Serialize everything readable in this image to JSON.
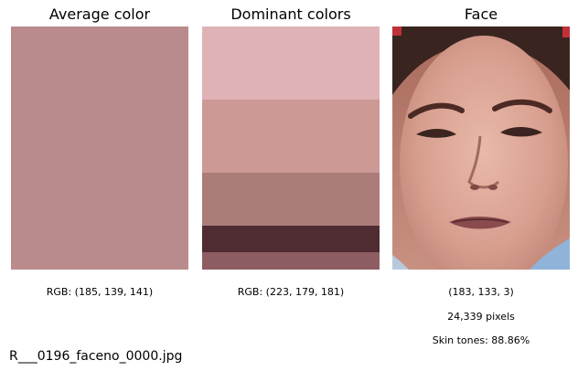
{
  "panels": {
    "average": {
      "title": "Average color",
      "color": "#b98b8d",
      "caption": "RGB: (185, 139, 141)"
    },
    "dominant": {
      "title": "Dominant colors",
      "caption": "RGB: (223, 179, 181)",
      "bands": [
        {
          "color": "#dfb3b5",
          "share": 0.3
        },
        {
          "color": "#cc9995",
          "share": 0.3
        },
        {
          "color": "#ac7c79",
          "share": 0.22
        },
        {
          "color": "#4e2c31",
          "share": 0.11
        },
        {
          "color": "#8d5d62",
          "share": 0.07
        }
      ]
    },
    "face": {
      "title": "Face",
      "caption_color": "(183, 133, 3)",
      "caption_pixels": "24,339 pixels",
      "caption_skin": "Skin tones: 88.86%"
    }
  },
  "filename": "R___0196_faceno_0000.jpg"
}
